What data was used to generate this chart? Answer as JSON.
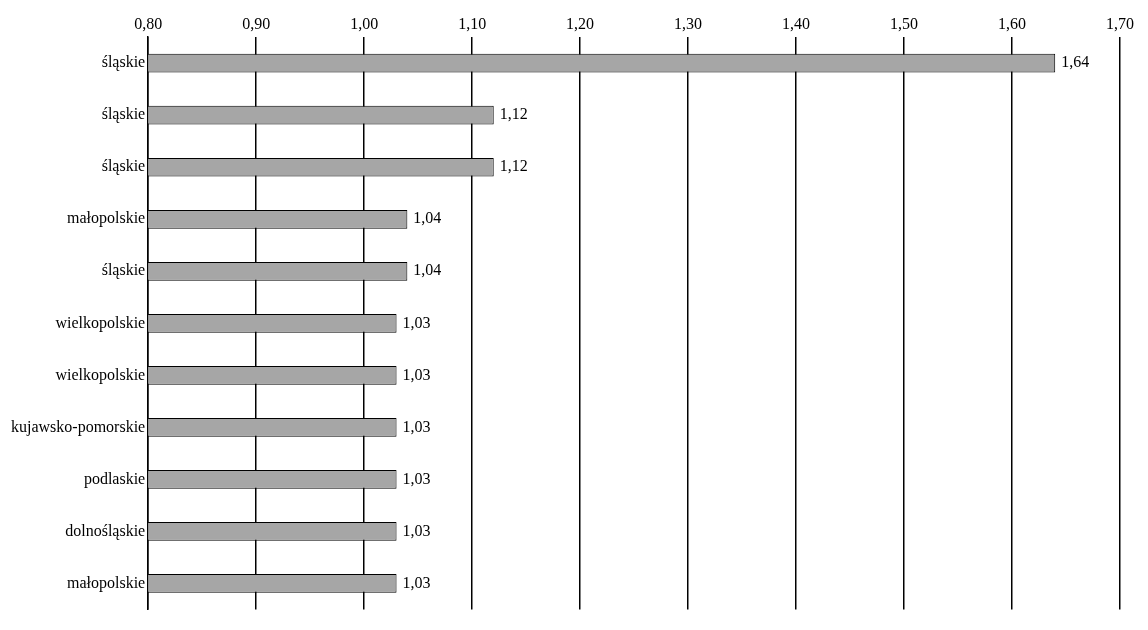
{
  "chart_data": {
    "type": "bar",
    "orientation": "horizontal",
    "categories": [
      "śląskie",
      "śląskie",
      "śląskie",
      "małopolskie",
      "śląskie",
      "wielkopolskie",
      "wielkopolskie",
      "kujawsko-pomorskie",
      "podlaskie",
      "dolnośląskie",
      "małopolskie"
    ],
    "values": [
      1.64,
      1.12,
      1.12,
      1.04,
      1.04,
      1.03,
      1.03,
      1.03,
      1.03,
      1.03,
      1.03
    ],
    "color": "#a6a6a6",
    "xlim": [
      0.8,
      1.7
    ],
    "xticks": [
      {
        "value": 0.8,
        "label": "0,80"
      },
      {
        "value": 0.9,
        "label": "0,90"
      },
      {
        "value": 1.0,
        "label": "1,00"
      },
      {
        "value": 1.1,
        "label": "1,10"
      },
      {
        "value": 1.2,
        "label": "1,20"
      },
      {
        "value": 1.3,
        "label": "1,30"
      },
      {
        "value": 1.4,
        "label": "1,40"
      },
      {
        "value": 1.5,
        "label": "1,50"
      },
      {
        "value": 1.6,
        "label": "1,60"
      },
      {
        "value": 1.7,
        "label": "1,70"
      }
    ],
    "value_labels": [
      "1,64",
      "1,12",
      "1,12",
      "1,04",
      "1,04",
      "1,03",
      "1,03",
      "1,03",
      "1,03",
      "1,03",
      "1,03"
    ],
    "grid": "x",
    "legend": false
  }
}
